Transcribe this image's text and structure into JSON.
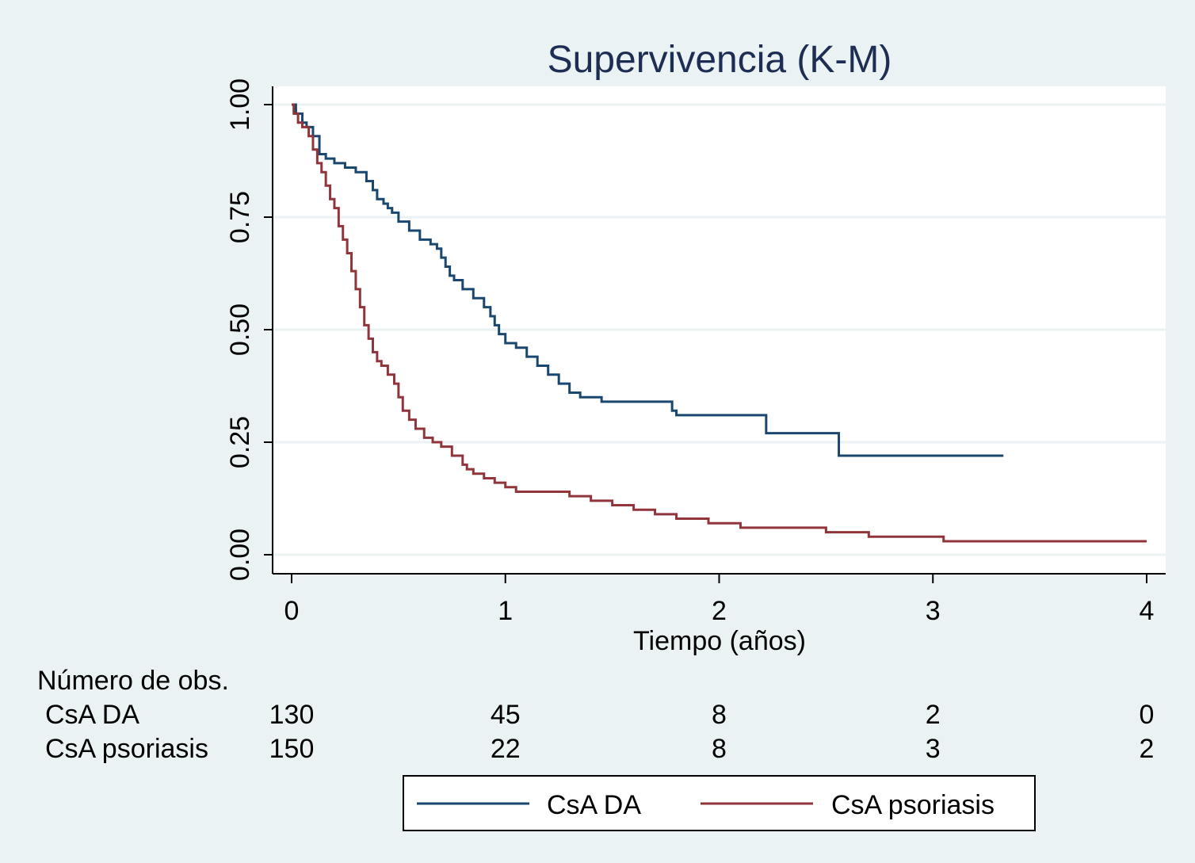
{
  "chart_data": {
    "type": "line",
    "step": true,
    "title": "Supervivencia (K-M)",
    "xlabel": "Tiempo (años)",
    "ylabel": "",
    "xlim": [
      0,
      4
    ],
    "ylim": [
      0,
      1
    ],
    "xticks": [
      "0",
      "1",
      "2",
      "3",
      "4"
    ],
    "yticks": [
      "0.00",
      "0.25",
      "0.50",
      "0.75",
      "1.00"
    ],
    "grid": true,
    "legend_position": "bottom",
    "series": [
      {
        "name": "CsA DA",
        "color": "#1a476f",
        "x": [
          0,
          0.02,
          0.05,
          0.07,
          0.1,
          0.13,
          0.16,
          0.2,
          0.25,
          0.3,
          0.35,
          0.38,
          0.4,
          0.43,
          0.45,
          0.47,
          0.5,
          0.55,
          0.6,
          0.65,
          0.68,
          0.7,
          0.72,
          0.74,
          0.76,
          0.8,
          0.85,
          0.9,
          0.93,
          0.95,
          0.97,
          1.0,
          1.05,
          1.1,
          1.15,
          1.2,
          1.25,
          1.3,
          1.35,
          1.45,
          1.78,
          1.8,
          2.22,
          2.56,
          3.33
        ],
        "y": [
          1.0,
          0.98,
          0.96,
          0.95,
          0.93,
          0.89,
          0.88,
          0.87,
          0.86,
          0.85,
          0.83,
          0.81,
          0.79,
          0.78,
          0.77,
          0.76,
          0.74,
          0.72,
          0.7,
          0.69,
          0.68,
          0.66,
          0.64,
          0.62,
          0.61,
          0.59,
          0.57,
          0.55,
          0.53,
          0.51,
          0.49,
          0.47,
          0.46,
          0.44,
          0.42,
          0.4,
          0.38,
          0.36,
          0.35,
          0.34,
          0.32,
          0.31,
          0.27,
          0.22,
          0.22
        ]
      },
      {
        "name": "CsA psoriasis",
        "color": "#90353b",
        "x": [
          0,
          0.01,
          0.03,
          0.05,
          0.08,
          0.1,
          0.12,
          0.14,
          0.16,
          0.18,
          0.2,
          0.22,
          0.24,
          0.26,
          0.28,
          0.3,
          0.32,
          0.34,
          0.36,
          0.38,
          0.4,
          0.42,
          0.45,
          0.48,
          0.5,
          0.52,
          0.55,
          0.58,
          0.62,
          0.66,
          0.7,
          0.75,
          0.8,
          0.82,
          0.85,
          0.9,
          0.95,
          1.0,
          1.05,
          1.3,
          1.4,
          1.5,
          1.6,
          1.7,
          1.8,
          1.95,
          2.1,
          2.5,
          2.7,
          3.05,
          4.0
        ],
        "y": [
          1.0,
          0.98,
          0.96,
          0.95,
          0.93,
          0.9,
          0.87,
          0.85,
          0.82,
          0.79,
          0.77,
          0.73,
          0.7,
          0.67,
          0.63,
          0.59,
          0.55,
          0.51,
          0.48,
          0.45,
          0.43,
          0.42,
          0.4,
          0.38,
          0.35,
          0.32,
          0.3,
          0.28,
          0.26,
          0.25,
          0.24,
          0.22,
          0.2,
          0.19,
          0.18,
          0.17,
          0.16,
          0.15,
          0.14,
          0.13,
          0.12,
          0.11,
          0.1,
          0.09,
          0.08,
          0.07,
          0.06,
          0.05,
          0.04,
          0.03,
          0.03
        ]
      }
    ],
    "risk_table": {
      "header": "Número de obs.",
      "times": [
        0,
        1,
        2,
        3,
        4
      ],
      "rows": [
        {
          "label": "CsA DA",
          "values": [
            "130",
            "45",
            "8",
            "2",
            "0"
          ]
        },
        {
          "label": "CsA psoriasis",
          "values": [
            "150",
            "22",
            "8",
            "3",
            "2"
          ]
        }
      ]
    }
  },
  "colors": {
    "outer_background": "#eaf2f3",
    "plot_background": "#ffffff",
    "grid": "#eaf2f3",
    "text": "#000000",
    "title": "#1e2d53"
  }
}
